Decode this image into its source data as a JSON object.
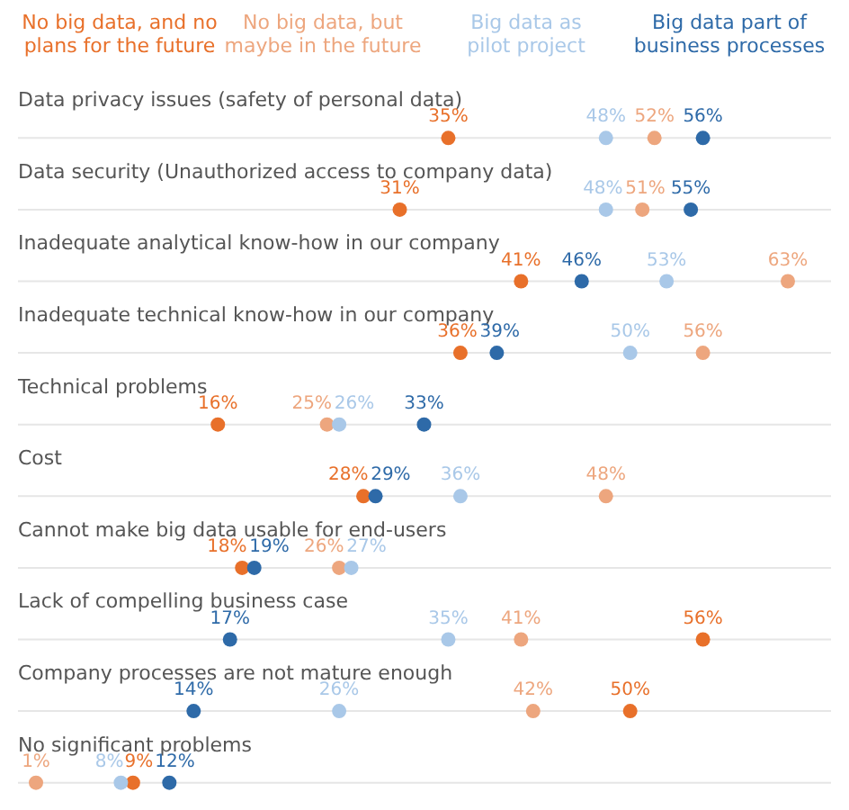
{
  "chart_data": {
    "type": "other",
    "categories": [
      "Data privacy issues (safety of personal data)",
      "Data security (Unauthorized access to company data)",
      "Inadequate analytical know-how in our company",
      "Inadequate technical know-how in our company",
      "Technical problems",
      "Cost",
      "Cannot make big data usable for end-users",
      "Lack of compelling business case",
      "Company processes are not mature enough",
      "No significant problems"
    ],
    "series": [
      {
        "name": "No big data, and no plans for the future",
        "color": "#e8702a",
        "values": [
          35,
          31,
          41,
          36,
          16,
          28,
          18,
          56,
          50,
          9
        ],
        "value_labels": [
          "35%",
          "31%",
          "41%",
          "36%",
          "16%",
          "28%",
          "18%",
          "56%",
          "50%",
          "9%"
        ]
      },
      {
        "name": "No big data, but maybe in the future",
        "color": "#eda67e",
        "values": [
          52,
          51,
          63,
          56,
          25,
          48,
          26,
          41,
          42,
          1
        ],
        "value_labels": [
          "52%",
          "51%",
          "63%",
          "56%",
          "25%",
          "48%",
          "26%",
          "41%",
          "42%",
          "1%"
        ]
      },
      {
        "name": "Big data as pilot project",
        "color": "#a9c8e8",
        "values": [
          48,
          48,
          53,
          50,
          26,
          36,
          27,
          35,
          26,
          8
        ],
        "value_labels": [
          "48%",
          "48%",
          "53%",
          "50%",
          "26%",
          "36%",
          "27%",
          "35%",
          "26%",
          "8%"
        ]
      },
      {
        "name": "Big data part of business processes",
        "color": "#2e6aa8",
        "values": [
          56,
          55,
          46,
          39,
          33,
          29,
          19,
          17,
          14,
          12
        ],
        "value_labels": [
          "56%",
          "55%",
          "46%",
          "39%",
          "33%",
          "29%",
          "19%",
          "17%",
          "14%",
          "12%"
        ]
      }
    ]
  }
}
